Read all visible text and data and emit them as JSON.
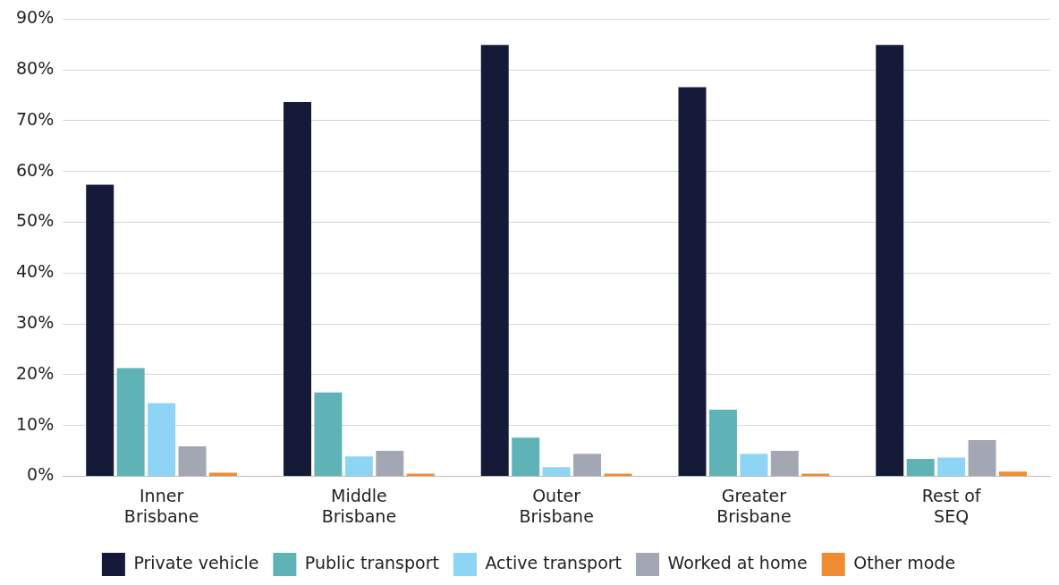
{
  "chart_data": {
    "type": "bar",
    "categories": [
      "Inner\nBrisbane",
      "Middle\nBrisbane",
      "Outer\nBrisbane",
      "Greater\nBrisbane",
      "Rest of\nSEQ"
    ],
    "series": [
      {
        "name": "Private vehicle",
        "color": "#141a38",
        "values": [
          57.4,
          73.7,
          84.9,
          76.6,
          84.9
        ]
      },
      {
        "name": "Public transport",
        "color": "#5fb3b6",
        "values": [
          21.3,
          16.5,
          7.6,
          13.1,
          3.4
        ]
      },
      {
        "name": "Active transport",
        "color": "#8dd4f5",
        "values": [
          14.4,
          3.9,
          1.8,
          4.4,
          3.7
        ]
      },
      {
        "name": "Worked at home",
        "color": "#a3a6b3",
        "values": [
          5.9,
          5.0,
          4.4,
          5.0,
          7.1
        ]
      },
      {
        "name": "Other mode",
        "color": "#f08c32",
        "values": [
          0.7,
          0.5,
          0.5,
          0.5,
          0.9
        ]
      }
    ],
    "ylim": [
      0,
      90
    ],
    "yticks": [
      {
        "value": 0,
        "label": "0%"
      },
      {
        "value": 10,
        "label": "10%"
      },
      {
        "value": 20,
        "label": "20%"
      },
      {
        "value": 30,
        "label": "30%"
      },
      {
        "value": 40,
        "label": "40%"
      },
      {
        "value": 50,
        "label": "50%"
      },
      {
        "value": 60,
        "label": "60%"
      },
      {
        "value": 70,
        "label": "70%"
      },
      {
        "value": 80,
        "label": "80%"
      },
      {
        "value": 90,
        "label": "90%"
      }
    ],
    "grid": "y",
    "legend": "bottom"
  }
}
